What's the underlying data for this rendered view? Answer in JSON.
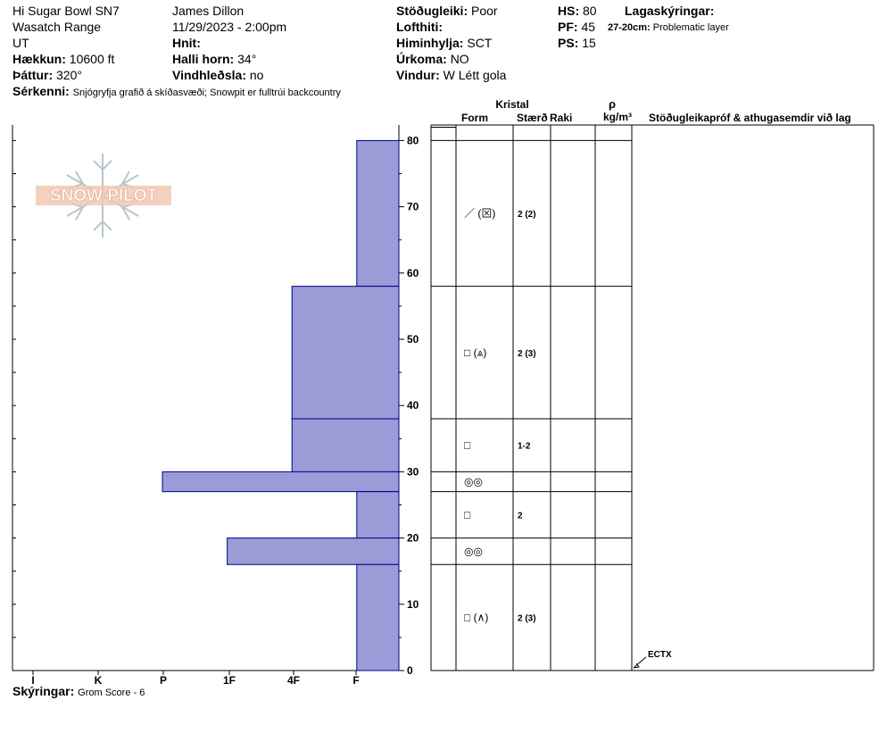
{
  "header": {
    "col1": [
      {
        "label": "",
        "value": "Hi Sugar Bowl SN7"
      },
      {
        "label": "",
        "value": "Wasatch Range"
      },
      {
        "label": "",
        "value": "UT"
      },
      {
        "label": "Hækkun:",
        "value": "10600 ft"
      },
      {
        "label": "Þáttur:",
        "value": "320°"
      }
    ],
    "col2": [
      {
        "label": "",
        "value": "James Dillon"
      },
      {
        "label": "",
        "value": "11/29/2023 - 2:00pm"
      },
      {
        "label": "Hnit:",
        "value": ""
      },
      {
        "label": "Halli horn:",
        "value": "34°"
      },
      {
        "label": "Vindhleðsla:",
        "value": "no"
      }
    ],
    "col3": [
      {
        "label": "Stöðugleiki:",
        "value": "Poor"
      },
      {
        "label": "Lofthiti:",
        "value": ""
      },
      {
        "label": "Himinhylja:",
        "value": "SCT"
      },
      {
        "label": "Úrkoma:",
        "value": "NO"
      },
      {
        "label": "Vindur:",
        "value": "W Létt gola"
      }
    ],
    "col4": [
      {
        "label": "HS:",
        "value": "80"
      },
      {
        "label": "PF:",
        "value": "45"
      },
      {
        "label": "PS:",
        "value": "15"
      }
    ],
    "legend_title": "Lagaskýringar:",
    "legend_range": "27-20cm:",
    "legend_text": "Problematic layer",
    "features_label": "Sérkenni:",
    "features_text": "Snjógryfja grafið á skíðasvæði; Snowpit er fulltrúi backcountry",
    "notes_label": "Skýringar:",
    "notes_text": "Grom Score - 6"
  },
  "logo_text": "SNOW PILOT",
  "table": {
    "crystal_header": "Kristal",
    "col_form": "Form",
    "col_size": "Stærð",
    "col_moisture": "Raki",
    "col_density_symbol": "ρ",
    "col_density_unit": "kg/m³",
    "col_tests": "Stöðugleikapróf & athugasemdir við lag",
    "test_label": "ECTX",
    "test_depth": 1.5
  },
  "colors": {
    "bar_fill": "#9b9bd7",
    "bar_stroke": "#00008b"
  },
  "chart_data": {
    "type": "bar",
    "orientation": "horizontal",
    "hardness_ticks": [
      "I",
      "K",
      "P",
      "1F",
      "4F",
      "F"
    ],
    "y_ticks": [
      0,
      10,
      20,
      30,
      40,
      50,
      60,
      70,
      80
    ],
    "ylim": [
      0,
      82
    ],
    "layers": [
      {
        "top": 80,
        "bottom": 58,
        "hardness": "F",
        "hardness_value": 0.65,
        "form": "／ (⊠)",
        "size": "2 (2)"
      },
      {
        "top": 58,
        "bottom": 38,
        "hardness": "4F",
        "hardness_value": 1.65,
        "form": "□ (⩓)",
        "size": "2 (3)"
      },
      {
        "top": 38,
        "bottom": 30,
        "hardness": "4F",
        "hardness_value": 1.65,
        "form": "□",
        "size": "1-2"
      },
      {
        "top": 30,
        "bottom": 27,
        "hardness": "P",
        "hardness_value": 3.65,
        "form": "◎◎",
        "size": ""
      },
      {
        "top": 27,
        "bottom": 20,
        "hardness": "F",
        "hardness_value": 0.65,
        "form": "□",
        "size": "2"
      },
      {
        "top": 20,
        "bottom": 16,
        "hardness": "1F",
        "hardness_value": 2.65,
        "form": "◎◎",
        "size": ""
      },
      {
        "top": 16,
        "bottom": 0,
        "hardness": "F",
        "hardness_value": 0.65,
        "form": "□ (∧)",
        "size": "2 (3)"
      }
    ]
  }
}
